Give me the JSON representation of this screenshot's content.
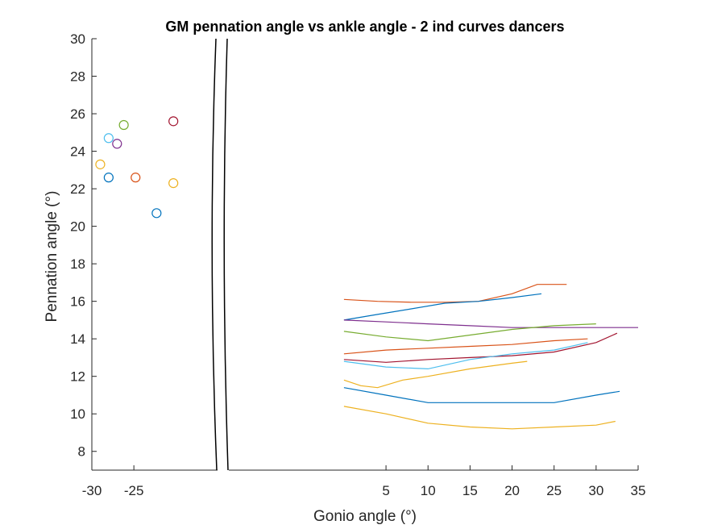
{
  "chart_data": {
    "type": "line",
    "title": "GM pennation angle vs ankle angle - 2 ind curves dancers",
    "xlabel": "Gonio angle (°)",
    "ylabel": "Pennation angle (°)",
    "xlim": [
      -30,
      35
    ],
    "ylim": [
      7,
      30
    ],
    "broken_x_axis": {
      "break_between": [
        -23,
        -20
      ],
      "break_mark": "double-curved-lines"
    },
    "x_ticks": [
      -30,
      -25,
      5,
      10,
      15,
      20,
      25,
      30,
      35
    ],
    "x_tick_labels": [
      "-30",
      "-25",
      "5",
      "10",
      "15",
      "20",
      "25",
      "30",
      "35"
    ],
    "y_ticks": [
      8,
      10,
      12,
      14,
      16,
      18,
      20,
      22,
      24,
      26,
      28,
      30
    ],
    "y_tick_labels": [
      "8",
      "10",
      "12",
      "14",
      "16",
      "18",
      "20",
      "22",
      "24",
      "26",
      "28",
      "30"
    ],
    "grid": false,
    "legend": "none",
    "points": [
      {
        "x": -29.0,
        "y": 23.3,
        "color": "#EDB120"
      },
      {
        "x": -28.0,
        "y": 24.7,
        "color": "#4DBEEE"
      },
      {
        "x": -28.0,
        "y": 22.6,
        "color": "#0072BD"
      },
      {
        "x": -27.0,
        "y": 24.4,
        "color": "#7E2F8E"
      },
      {
        "x": -26.2,
        "y": 25.4,
        "color": "#77AC30"
      },
      {
        "x": -24.8,
        "y": 22.6,
        "color": "#D95319"
      },
      {
        "x": -22.3,
        "y": 20.7,
        "color": "#0072BD"
      },
      {
        "x": -20.3,
        "y": 25.6,
        "color": "#A2142F"
      },
      {
        "x": -20.3,
        "y": 22.3,
        "color": "#EDB120"
      }
    ],
    "series": [
      {
        "color": "#D95319",
        "x": [
          0,
          4,
          8,
          12,
          16,
          20,
          23,
          26.5
        ],
        "y": [
          16.1,
          16.0,
          15.95,
          15.95,
          16.0,
          16.4,
          16.9,
          16.9
        ]
      },
      {
        "color": "#0072BD",
        "x": [
          0,
          4,
          8,
          12,
          16,
          20,
          23.5
        ],
        "y": [
          15.0,
          15.3,
          15.6,
          15.9,
          16.0,
          16.2,
          16.4
        ]
      },
      {
        "color": "#7E2F8E",
        "x": [
          0,
          5,
          10,
          15,
          20,
          25,
          30,
          35
        ],
        "y": [
          15.0,
          14.9,
          14.8,
          14.7,
          14.6,
          14.6,
          14.6,
          14.6
        ]
      },
      {
        "color": "#77AC30",
        "x": [
          0,
          5,
          10,
          15,
          20,
          25,
          30
        ],
        "y": [
          14.4,
          14.1,
          13.9,
          14.2,
          14.5,
          14.7,
          14.8
        ]
      },
      {
        "color": "#D95319",
        "x": [
          0,
          5,
          10,
          15,
          20,
          25,
          29
        ],
        "y": [
          13.2,
          13.4,
          13.5,
          13.6,
          13.7,
          13.9,
          14.0
        ]
      },
      {
        "color": "#A2142F",
        "x": [
          0,
          5,
          10,
          15,
          20,
          25,
          30,
          32.5
        ],
        "y": [
          12.9,
          12.75,
          12.9,
          13.0,
          13.1,
          13.3,
          13.8,
          14.3
        ]
      },
      {
        "color": "#4DBEEE",
        "x": [
          0,
          5,
          10,
          15,
          20,
          25,
          29
        ],
        "y": [
          12.8,
          12.5,
          12.4,
          12.9,
          13.2,
          13.4,
          13.8
        ]
      },
      {
        "color": "#EDB120",
        "x": [
          0,
          2,
          4,
          7,
          10,
          15,
          20,
          21.8
        ],
        "y": [
          11.8,
          11.5,
          11.4,
          11.8,
          12.0,
          12.4,
          12.7,
          12.8
        ]
      },
      {
        "color": "#0072BD",
        "x": [
          0,
          5,
          10,
          15,
          20,
          25,
          30,
          32.8
        ],
        "y": [
          11.4,
          11.0,
          10.6,
          10.6,
          10.6,
          10.6,
          11.0,
          11.2
        ]
      },
      {
        "color": "#EDB120",
        "x": [
          0,
          5,
          10,
          15,
          20,
          25,
          30,
          32.3
        ],
        "y": [
          10.4,
          10.0,
          9.5,
          9.3,
          9.2,
          9.3,
          9.4,
          9.6
        ]
      }
    ]
  }
}
